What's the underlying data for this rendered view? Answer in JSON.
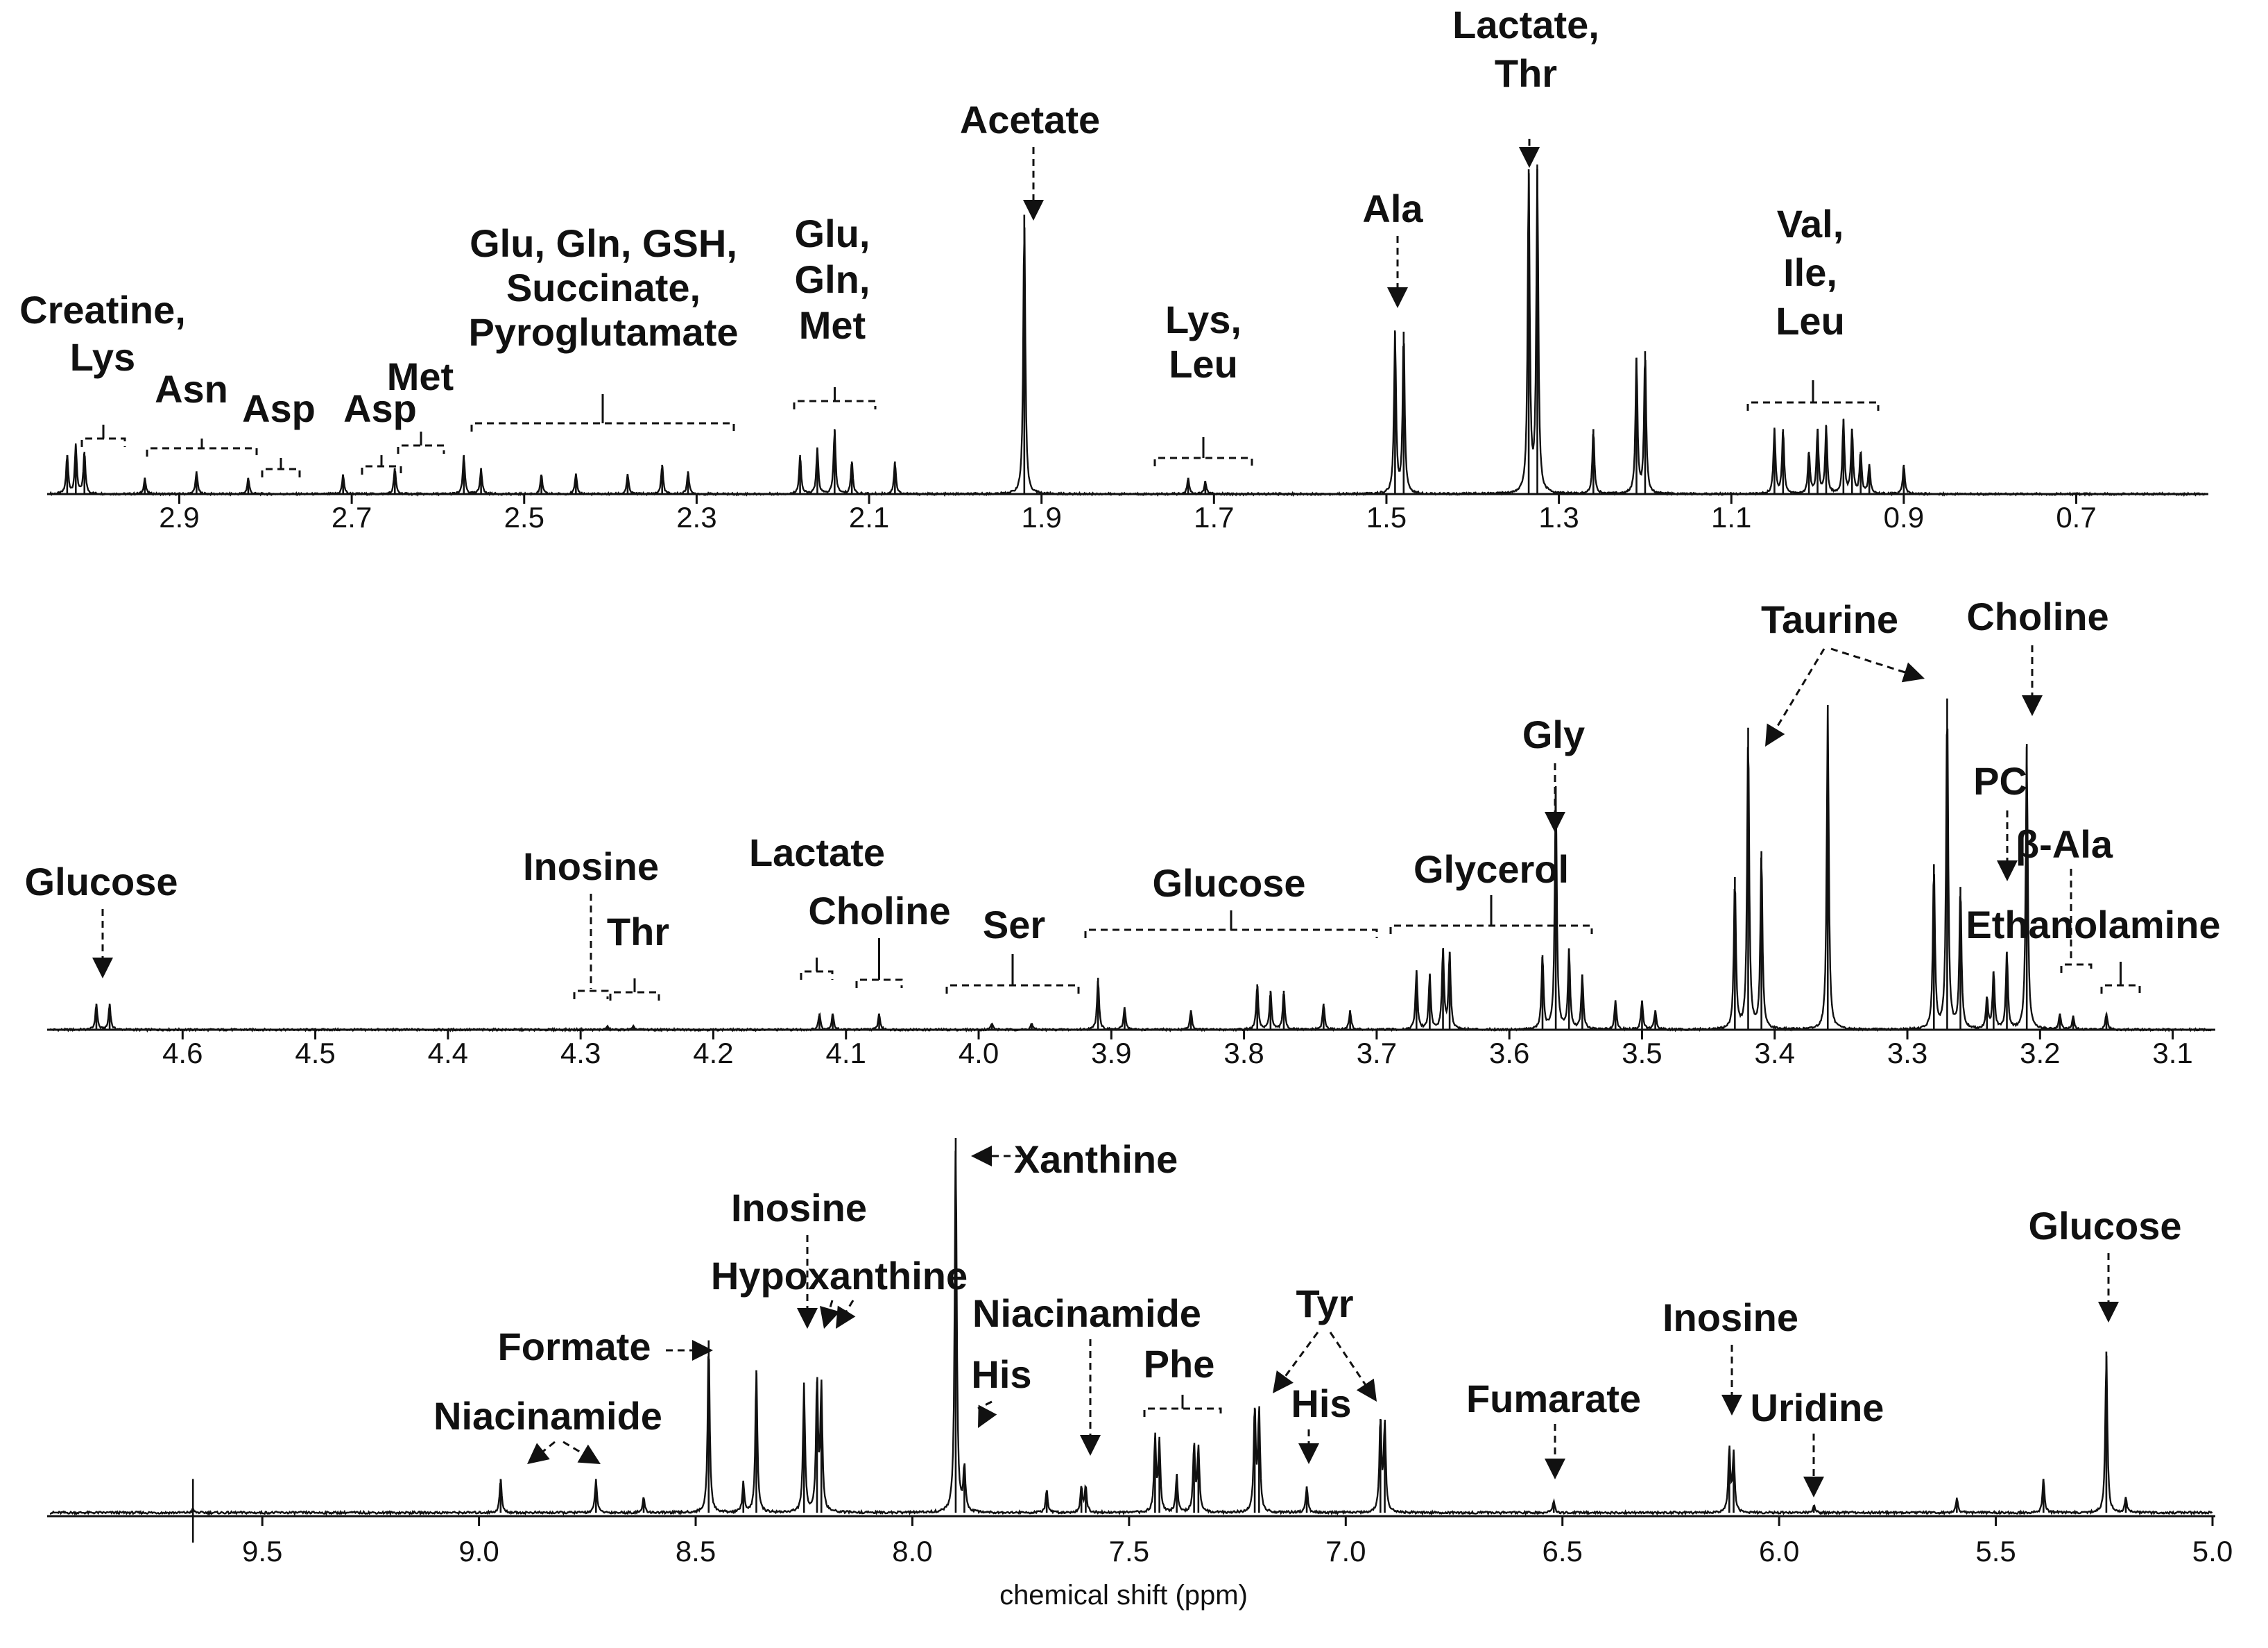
{
  "chart_data": [
    {
      "type": "line",
      "panel": "top",
      "x_unit": "ppm",
      "x_range": [
        3.05,
        0.55
      ],
      "x_direction": "reversed",
      "ticks": [
        "2.9",
        "2.7",
        "2.5",
        "2.3",
        "2.1",
        "1.9",
        "1.7",
        "1.5",
        "1.3",
        "1.1",
        "0.9",
        "0.7"
      ],
      "ylabel": "",
      "peaks": [
        {
          "ppm": 3.03,
          "h": 0.12
        },
        {
          "ppm": 3.02,
          "h": 0.15
        },
        {
          "ppm": 3.01,
          "h": 0.13
        },
        {
          "ppm": 2.94,
          "h": 0.05
        },
        {
          "ppm": 2.88,
          "h": 0.07
        },
        {
          "ppm": 2.82,
          "h": 0.05
        },
        {
          "ppm": 2.71,
          "h": 0.06
        },
        {
          "ppm": 2.65,
          "h": 0.08
        },
        {
          "ppm": 2.57,
          "h": 0.12
        },
        {
          "ppm": 2.55,
          "h": 0.08
        },
        {
          "ppm": 2.48,
          "h": 0.06
        },
        {
          "ppm": 2.44,
          "h": 0.06
        },
        {
          "ppm": 2.38,
          "h": 0.06
        },
        {
          "ppm": 2.34,
          "h": 0.09
        },
        {
          "ppm": 2.31,
          "h": 0.07
        },
        {
          "ppm": 2.18,
          "h": 0.12
        },
        {
          "ppm": 2.16,
          "h": 0.14
        },
        {
          "ppm": 2.14,
          "h": 0.2
        },
        {
          "ppm": 2.12,
          "h": 0.1
        },
        {
          "ppm": 2.07,
          "h": 0.1
        },
        {
          "ppm": 1.92,
          "h": 0.86
        },
        {
          "ppm": 1.73,
          "h": 0.05
        },
        {
          "ppm": 1.71,
          "h": 0.04
        },
        {
          "ppm": 1.49,
          "h": 0.5
        },
        {
          "ppm": 1.48,
          "h": 0.5
        },
        {
          "ppm": 1.335,
          "h": 1.0
        },
        {
          "ppm": 1.325,
          "h": 1.0
        },
        {
          "ppm": 1.26,
          "h": 0.2
        },
        {
          "ppm": 1.21,
          "h": 0.42
        },
        {
          "ppm": 1.2,
          "h": 0.44
        },
        {
          "ppm": 1.05,
          "h": 0.2
        },
        {
          "ppm": 1.04,
          "h": 0.2
        },
        {
          "ppm": 1.01,
          "h": 0.13
        },
        {
          "ppm": 1.0,
          "h": 0.2
        },
        {
          "ppm": 0.99,
          "h": 0.21
        },
        {
          "ppm": 0.97,
          "h": 0.23
        },
        {
          "ppm": 0.96,
          "h": 0.2
        },
        {
          "ppm": 0.95,
          "h": 0.13
        },
        {
          "ppm": 0.94,
          "h": 0.09
        },
        {
          "ppm": 0.9,
          "h": 0.09
        }
      ],
      "annotations": [
        {
          "text": "Acetate",
          "lines": [
            "Acetate"
          ]
        },
        {
          "text": "Lactate, Thr",
          "lines": [
            "Lactate,",
            "Thr"
          ]
        },
        {
          "text": "Ala",
          "lines": [
            "Ala"
          ]
        },
        {
          "text": "Val, Ile, Leu",
          "lines": [
            "Val,",
            "Ile,",
            "Leu"
          ]
        },
        {
          "text": "Lys, Leu",
          "lines": [
            "Lys,",
            "Leu"
          ]
        },
        {
          "text": "Glu, Gln, Met",
          "lines": [
            "Glu,",
            "Gln,",
            "Met"
          ]
        },
        {
          "text": "Glu, Gln, GSH, Succinate, Pyroglutamate",
          "lines": [
            "Glu, Gln, GSH,",
            "Succinate,",
            "Pyroglutamate"
          ]
        },
        {
          "text": "Creatine, Lys",
          "lines": [
            "Creatine,",
            "Lys"
          ]
        },
        {
          "text": "Asn",
          "lines": [
            "Asn"
          ]
        },
        {
          "text": "Asp",
          "lines": [
            "Asp"
          ]
        },
        {
          "text": "Asp",
          "lines": [
            "Asp"
          ]
        },
        {
          "text": "Met",
          "lines": [
            "Met"
          ]
        }
      ]
    },
    {
      "type": "line",
      "panel": "middle",
      "x_unit": "ppm",
      "x_range": [
        4.7,
        3.07
      ],
      "x_direction": "reversed",
      "ticks": [
        "4.6",
        "4.5",
        "4.4",
        "4.3",
        "4.2",
        "4.1",
        "4.0",
        "3.9",
        "3.8",
        "3.7",
        "3.6",
        "3.5",
        "3.4",
        "3.3",
        "3.2",
        "3.1"
      ],
      "ylabel": "",
      "peaks": [
        {
          "ppm": 4.665,
          "h": 0.08
        },
        {
          "ppm": 4.655,
          "h": 0.08
        },
        {
          "ppm": 4.28,
          "h": 0.01
        },
        {
          "ppm": 4.26,
          "h": 0.01
        },
        {
          "ppm": 4.12,
          "h": 0.05
        },
        {
          "ppm": 4.11,
          "h": 0.05
        },
        {
          "ppm": 4.075,
          "h": 0.05
        },
        {
          "ppm": 3.99,
          "h": 0.02
        },
        {
          "ppm": 3.96,
          "h": 0.02
        },
        {
          "ppm": 3.91,
          "h": 0.16
        },
        {
          "ppm": 3.89,
          "h": 0.07
        },
        {
          "ppm": 3.84,
          "h": 0.06
        },
        {
          "ppm": 3.79,
          "h": 0.14
        },
        {
          "ppm": 3.78,
          "h": 0.12
        },
        {
          "ppm": 3.77,
          "h": 0.12
        },
        {
          "ppm": 3.74,
          "h": 0.08
        },
        {
          "ppm": 3.72,
          "h": 0.06
        },
        {
          "ppm": 3.67,
          "h": 0.18
        },
        {
          "ppm": 3.66,
          "h": 0.17
        },
        {
          "ppm": 3.65,
          "h": 0.25
        },
        {
          "ppm": 3.645,
          "h": 0.24
        },
        {
          "ppm": 3.575,
          "h": 0.23
        },
        {
          "ppm": 3.565,
          "h": 0.75
        },
        {
          "ppm": 3.555,
          "h": 0.25
        },
        {
          "ppm": 3.545,
          "h": 0.17
        },
        {
          "ppm": 3.52,
          "h": 0.09
        },
        {
          "ppm": 3.5,
          "h": 0.09
        },
        {
          "ppm": 3.49,
          "h": 0.06
        },
        {
          "ppm": 3.43,
          "h": 0.47
        },
        {
          "ppm": 3.42,
          "h": 0.93
        },
        {
          "ppm": 3.41,
          "h": 0.55
        },
        {
          "ppm": 3.36,
          "h": 1.0
        },
        {
          "ppm": 3.28,
          "h": 0.51
        },
        {
          "ppm": 3.27,
          "h": 1.02
        },
        {
          "ppm": 3.26,
          "h": 0.44
        },
        {
          "ppm": 3.24,
          "h": 0.1
        },
        {
          "ppm": 3.235,
          "h": 0.18
        },
        {
          "ppm": 3.225,
          "h": 0.24
        },
        {
          "ppm": 3.21,
          "h": 0.88
        },
        {
          "ppm": 3.185,
          "h": 0.05
        },
        {
          "ppm": 3.175,
          "h": 0.04
        },
        {
          "ppm": 3.15,
          "h": 0.05
        }
      ],
      "annotations": [
        {
          "text": "Glucose",
          "lines": [
            "Glucose"
          ]
        },
        {
          "text": "Inosine",
          "lines": [
            "Inosine"
          ]
        },
        {
          "text": "Thr",
          "lines": [
            "Thr"
          ]
        },
        {
          "text": "Lactate",
          "lines": [
            "Lactate"
          ]
        },
        {
          "text": "Choline",
          "lines": [
            "Choline"
          ]
        },
        {
          "text": "Ser",
          "lines": [
            "Ser"
          ]
        },
        {
          "text": "Glucose",
          "lines": [
            "Glucose"
          ]
        },
        {
          "text": "Glycerol",
          "lines": [
            "Glycerol"
          ]
        },
        {
          "text": "Gly",
          "lines": [
            "Gly"
          ]
        },
        {
          "text": "Taurine",
          "lines": [
            "Taurine"
          ]
        },
        {
          "text": "Choline",
          "lines": [
            "Choline"
          ]
        },
        {
          "text": "PC",
          "lines": [
            "PC"
          ]
        },
        {
          "text": "β-Ala",
          "lines": [
            "β-Ala"
          ]
        },
        {
          "text": "Ethanolamine",
          "lines": [
            "Ethanolamine"
          ]
        }
      ]
    },
    {
      "type": "line",
      "panel": "bottom",
      "x_unit": "ppm",
      "x_range": [
        9.99,
        5.0
      ],
      "x_direction": "reversed",
      "xlabel": "chemical shift (ppm)",
      "ticks": [
        "9.5",
        "9.0",
        "8.5",
        "8.0",
        "7.5",
        "7.0",
        "6.5",
        "6.0",
        "5.5",
        "5.0"
      ],
      "ylabel": "",
      "peaks": [
        {
          "ppm": 9.66,
          "h": 0.09
        },
        {
          "ppm": 9.66,
          "h": -0.08
        },
        {
          "ppm": 8.95,
          "h": 0.09
        },
        {
          "ppm": 8.73,
          "h": 0.09
        },
        {
          "ppm": 8.62,
          "h": 0.04
        },
        {
          "ppm": 8.47,
          "h": 0.46
        },
        {
          "ppm": 8.39,
          "h": 0.08
        },
        {
          "ppm": 8.36,
          "h": 0.38
        },
        {
          "ppm": 8.25,
          "h": 0.34
        },
        {
          "ppm": 8.22,
          "h": 0.35
        },
        {
          "ppm": 8.21,
          "h": 0.33
        },
        {
          "ppm": 7.9,
          "h": 1.0
        },
        {
          "ppm": 7.88,
          "h": 0.12
        },
        {
          "ppm": 7.69,
          "h": 0.06
        },
        {
          "ppm": 7.61,
          "h": 0.07
        },
        {
          "ppm": 7.6,
          "h": 0.07
        },
        {
          "ppm": 7.44,
          "h": 0.2
        },
        {
          "ppm": 7.43,
          "h": 0.19
        },
        {
          "ppm": 7.39,
          "h": 0.1
        },
        {
          "ppm": 7.35,
          "h": 0.18
        },
        {
          "ppm": 7.34,
          "h": 0.17
        },
        {
          "ppm": 7.21,
          "h": 0.28
        },
        {
          "ppm": 7.2,
          "h": 0.27
        },
        {
          "ppm": 7.09,
          "h": 0.07
        },
        {
          "ppm": 6.92,
          "h": 0.25
        },
        {
          "ppm": 6.91,
          "h": 0.24
        },
        {
          "ppm": 6.52,
          "h": 0.03
        },
        {
          "ppm": 6.115,
          "h": 0.17
        },
        {
          "ppm": 6.105,
          "h": 0.16
        },
        {
          "ppm": 5.92,
          "h": 0.02
        },
        {
          "ppm": 5.59,
          "h": 0.04
        },
        {
          "ppm": 5.39,
          "h": 0.09
        },
        {
          "ppm": 5.245,
          "h": 0.43
        },
        {
          "ppm": 5.2,
          "h": 0.04
        }
      ],
      "annotations": [
        {
          "text": "Xanthine",
          "lines": [
            "Xanthine"
          ]
        },
        {
          "text": "Inosine",
          "lines": [
            "Inosine"
          ]
        },
        {
          "text": "Hypoxanthine",
          "lines": [
            "Hypoxanthine"
          ]
        },
        {
          "text": "Formate",
          "lines": [
            "Formate"
          ]
        },
        {
          "text": "Niacinamide",
          "lines": [
            "Niacinamide"
          ]
        },
        {
          "text": "Niacinamide",
          "lines": [
            "Niacinamide"
          ]
        },
        {
          "text": "His",
          "lines": [
            "His"
          ]
        },
        {
          "text": "Phe",
          "lines": [
            "Phe"
          ]
        },
        {
          "text": "Tyr",
          "lines": [
            "Tyr"
          ]
        },
        {
          "text": "His",
          "lines": [
            "His"
          ]
        },
        {
          "text": "Fumarate",
          "lines": [
            "Fumarate"
          ]
        },
        {
          "text": "Inosine",
          "lines": [
            "Inosine"
          ]
        },
        {
          "text": "Uridine",
          "lines": [
            "Uridine"
          ]
        },
        {
          "text": "Glucose",
          "lines": [
            "Glucose"
          ]
        }
      ]
    }
  ]
}
